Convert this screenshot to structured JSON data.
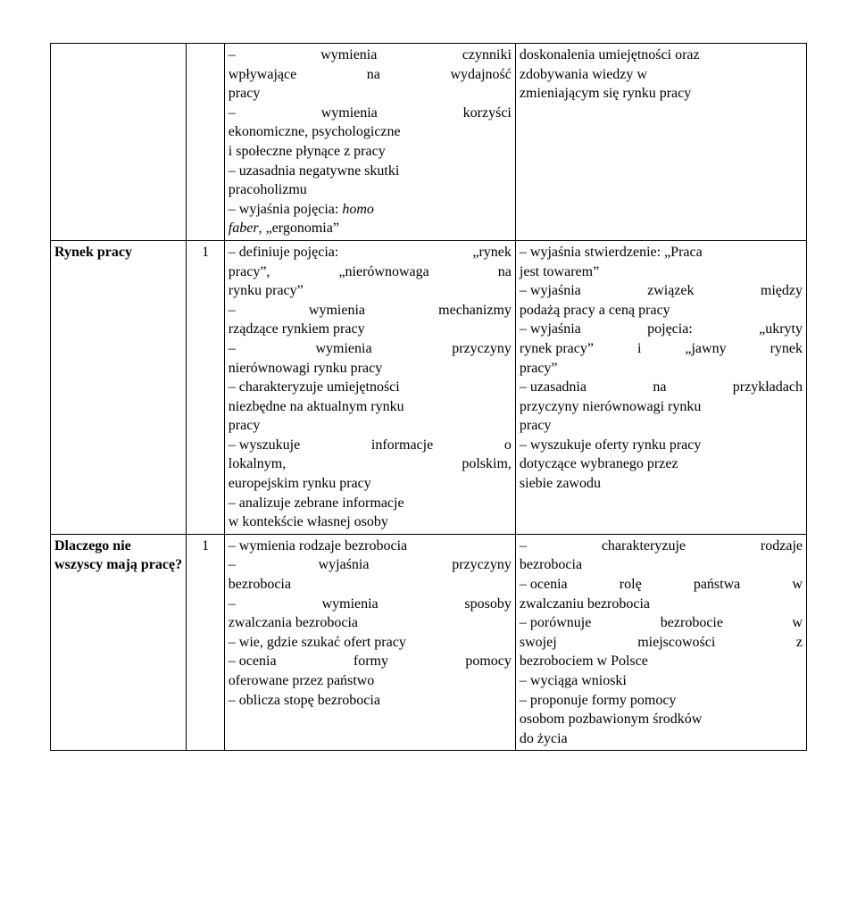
{
  "rows": [
    {
      "topic": "",
      "hours": "",
      "col3": [
        {
          "t": "jline",
          "parts": [
            "–",
            "wymienia",
            "czynniki"
          ]
        },
        {
          "t": "jline",
          "parts": [
            "wpływające",
            "na",
            "wydajność"
          ]
        },
        {
          "t": "plain",
          "text": "pracy"
        },
        {
          "t": "jline",
          "parts": [
            "–",
            "wymienia",
            "korzyści"
          ]
        },
        {
          "t": "plain",
          "text": "ekonomiczne, psychologiczne"
        },
        {
          "t": "plain",
          "text": "i społeczne płynące z pracy"
        },
        {
          "t": "plain",
          "text": "– uzasadnia negatywne skutki"
        },
        {
          "t": "plain",
          "text": "pracoholizmu"
        },
        {
          "t": "mixed",
          "runs": [
            {
              "text": "– wyjaśnia pojęcia: "
            },
            {
              "text": "homo",
              "italic": true
            }
          ]
        },
        {
          "t": "mixed",
          "runs": [
            {
              "text": "faber",
              "italic": true
            },
            {
              "text": ", „ergonomia”"
            }
          ]
        }
      ],
      "col4": [
        {
          "t": "plain",
          "text": "doskonalenia umiejętności oraz"
        },
        {
          "t": "plain",
          "text": "zdobywania wiedzy w"
        },
        {
          "t": "plain",
          "text": "zmieniającym się rynku pracy"
        }
      ]
    },
    {
      "topic": "Rynek pracy",
      "topic_bold": true,
      "hours": "1",
      "col3": [
        {
          "t": "jline",
          "parts": [
            "– definiuje pojęcia:",
            "„rynek"
          ]
        },
        {
          "t": "jline",
          "parts": [
            "pracy”,",
            "„nierównowaga",
            "na"
          ]
        },
        {
          "t": "plain",
          "text": "rynku pracy”"
        },
        {
          "t": "jline",
          "parts": [
            "–",
            "wymienia",
            "mechanizmy"
          ]
        },
        {
          "t": "plain",
          "text": "rządzące rynkiem pracy"
        },
        {
          "t": "jline",
          "parts": [
            "–",
            "wymienia",
            "przyczyny"
          ]
        },
        {
          "t": "plain",
          "text": "nierównowagi rynku pracy"
        },
        {
          "t": "plain",
          "text": "– charakteryzuje umiejętności"
        },
        {
          "t": "plain",
          "text": "niezbędne na aktualnym rynku"
        },
        {
          "t": "plain",
          "text": "pracy"
        },
        {
          "t": "jline",
          "parts": [
            "– wyszukuje",
            "informacje",
            "o"
          ]
        },
        {
          "t": "jline",
          "parts": [
            "lokalnym,",
            "polskim,"
          ]
        },
        {
          "t": "plain",
          "text": "europejskim rynku pracy"
        },
        {
          "t": "plain",
          "text": "– analizuje zebrane informacje"
        },
        {
          "t": "plain",
          "text": "w kontekście własnej osoby"
        }
      ],
      "col4": [
        {
          "t": "plain",
          "text": "– wyjaśnia stwierdzenie: „Praca"
        },
        {
          "t": "plain",
          "text": "jest towarem”"
        },
        {
          "t": "jline",
          "parts": [
            "– wyjaśnia",
            "związek",
            "między"
          ]
        },
        {
          "t": "plain",
          "text": "podażą pracy a ceną pracy"
        },
        {
          "t": "jline",
          "parts": [
            "– wyjaśnia",
            "pojęcia:",
            "„ukryty"
          ]
        },
        {
          "t": "jline",
          "parts": [
            "rynek pracy”",
            "i",
            "„jawny",
            "rynek"
          ]
        },
        {
          "t": "plain",
          "text": "pracy”"
        },
        {
          "t": "jline",
          "parts": [
            "– uzasadnia",
            "na",
            "przykładach"
          ]
        },
        {
          "t": "plain",
          "text": "przyczyny nierównowagi rynku"
        },
        {
          "t": "plain",
          "text": "pracy"
        },
        {
          "t": "plain",
          "text": "– wyszukuje oferty rynku pracy"
        },
        {
          "t": "plain",
          "text": "dotyczące wybranego przez"
        },
        {
          "t": "plain",
          "text": "siebie zawodu"
        }
      ]
    },
    {
      "topic": "Dlaczego nie wszyscy mają pracę?",
      "topic_bold": true,
      "hours": "1",
      "col3": [
        {
          "t": "plain",
          "text": "– wymienia rodzaje bezrobocia"
        },
        {
          "t": "jline",
          "parts": [
            "–",
            "wyjaśnia",
            "przyczyny"
          ]
        },
        {
          "t": "plain",
          "text": "bezrobocia"
        },
        {
          "t": "jline",
          "parts": [
            "–",
            "wymienia",
            "sposoby"
          ]
        },
        {
          "t": "plain",
          "text": "zwalczania bezrobocia"
        },
        {
          "t": "plain",
          "text": "– wie, gdzie szukać ofert pracy"
        },
        {
          "t": "jline",
          "parts": [
            "– ocenia",
            "formy",
            "pomocy"
          ]
        },
        {
          "t": "plain",
          "text": "oferowane przez państwo"
        },
        {
          "t": "plain",
          "text": "– oblicza stopę bezrobocia"
        }
      ],
      "col4": [
        {
          "t": "jline",
          "parts": [
            "–",
            "charakteryzuje",
            "rodzaje"
          ]
        },
        {
          "t": "plain",
          "text": "bezrobocia"
        },
        {
          "t": "jline",
          "parts": [
            "– ocenia",
            "rolę",
            "państwa",
            "w"
          ]
        },
        {
          "t": "plain",
          "text": "zwalczaniu bezrobocia"
        },
        {
          "t": "jline",
          "parts": [
            "– porównuje",
            "bezrobocie",
            "w"
          ]
        },
        {
          "t": "jline",
          "parts": [
            "swojej",
            "miejscowości",
            "z"
          ]
        },
        {
          "t": "plain",
          "text": "bezrobociem w Polsce"
        },
        {
          "t": "plain",
          "text": "– wyciąga wnioski"
        },
        {
          "t": "plain",
          "text": "– proponuje formy pomocy"
        },
        {
          "t": "plain",
          "text": "osobom pozbawionym środków"
        },
        {
          "t": "plain",
          "text": "do życia"
        }
      ]
    }
  ]
}
